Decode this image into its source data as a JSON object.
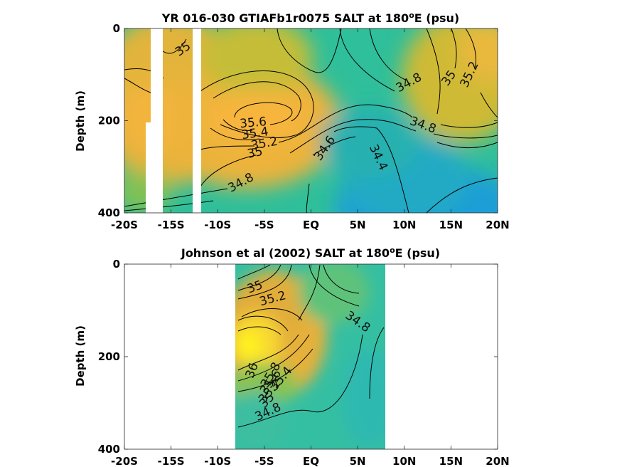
{
  "chart_data": [
    {
      "type": "heatmap",
      "title_pre": "YR 016-030 GTIAFb1r0075 SALT at 180",
      "title_sup": "o",
      "title_post": "E (psu)",
      "ylabel": "Depth (m)",
      "x_ticks": [
        "-20S",
        "-15S",
        "-10S",
        "-5S",
        "EQ",
        "5N",
        "10N",
        "15N",
        "20N"
      ],
      "x_tick_values": [
        -20,
        -15,
        -10,
        -5,
        0,
        5,
        10,
        15,
        20
      ],
      "y_ticks": [
        "0",
        "200",
        "400"
      ],
      "y_tick_values": [
        0,
        200,
        400
      ],
      "xlim": [
        -20,
        20
      ],
      "ylim": [
        400,
        0
      ],
      "gaps_lat": [
        [
          -18.0,
          -16.8
        ],
        [
          -12.4,
          -11.6
        ]
      ],
      "contours": [
        {
          "label": "35",
          "lat": -13.7,
          "depth": 45
        },
        {
          "label": "35.6",
          "lat": -6.2,
          "depth": 205
        },
        {
          "label": "35.4",
          "lat": -6.0,
          "depth": 228
        },
        {
          "label": "35.2",
          "lat": -5.0,
          "depth": 250
        },
        {
          "label": "35",
          "lat": -6.0,
          "depth": 270
        },
        {
          "label": "34.8",
          "lat": -7.5,
          "depth": 335
        },
        {
          "label": "34.6",
          "lat": 1.5,
          "depth": 260
        },
        {
          "label": "34.4",
          "lat": 7.2,
          "depth": 280
        },
        {
          "label": "34.8",
          "lat": 10.5,
          "depth": 118
        },
        {
          "label": "35",
          "lat": 14.8,
          "depth": 108
        },
        {
          "label": "35.2",
          "lat": 17.0,
          "depth": 100
        },
        {
          "label": "34.8",
          "lat": 12.0,
          "depth": 210
        }
      ]
    },
    {
      "type": "heatmap",
      "title_pre": "Johnson et al (2002) SALT at 180",
      "title_sup": "o",
      "title_post": "E (psu)",
      "ylabel": "Depth (m)",
      "x_ticks": [
        "-20S",
        "-15S",
        "-10S",
        "-5S",
        "EQ",
        "5N",
        "10N",
        "15N",
        "20N"
      ],
      "x_tick_values": [
        -20,
        -15,
        -10,
        -5,
        0,
        5,
        10,
        15,
        20
      ],
      "y_ticks": [
        "0",
        "200",
        "400"
      ],
      "y_tick_values": [
        0,
        200,
        400
      ],
      "xlim": [
        -20,
        20
      ],
      "ylim": [
        400,
        0
      ],
      "data_lat_range": [
        -8,
        8
      ],
      "contours": [
        {
          "label": "35",
          "lat": -6.0,
          "depth": 50
        },
        {
          "label": "35.2",
          "lat": -4.1,
          "depth": 75
        },
        {
          "label": "34.8",
          "lat": 5.0,
          "depth": 125
        },
        {
          "label": "36",
          "lat": -6.3,
          "depth": 230
        },
        {
          "label": "35.8",
          "lat": -4.3,
          "depth": 240
        },
        {
          "label": "35.6",
          "lat": -4.3,
          "depth": 255
        },
        {
          "label": "35.4",
          "lat": -3.2,
          "depth": 248
        },
        {
          "label": "35.2",
          "lat": -4.4,
          "depth": 275
        },
        {
          "label": "35",
          "lat": -4.7,
          "depth": 295
        },
        {
          "label": "34.8",
          "lat": -4.6,
          "depth": 320
        }
      ]
    }
  ]
}
